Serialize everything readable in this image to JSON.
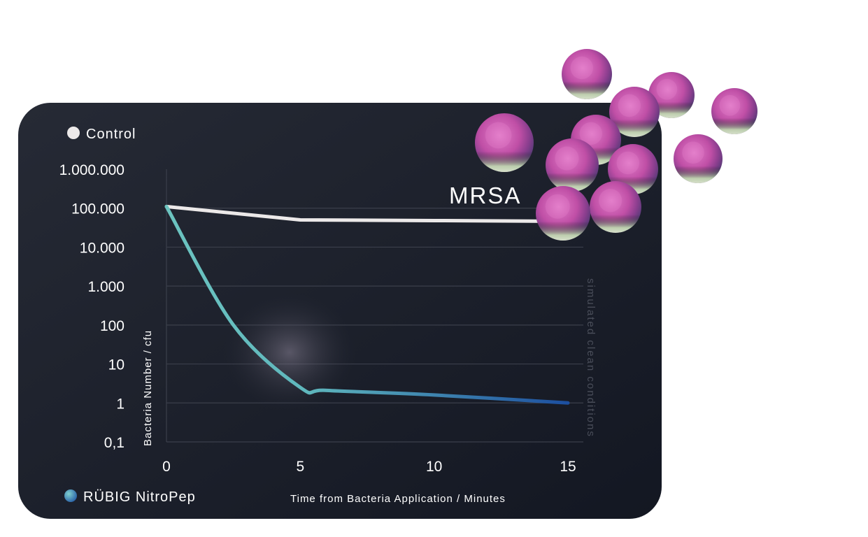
{
  "chart_data": {
    "type": "line",
    "title": "",
    "xlabel": "Time from Bacteria Application / Minutes",
    "ylabel": "Bacteria Number / cfu",
    "yscale": "log",
    "xlim": [
      0,
      15
    ],
    "ylim": [
      0.1,
      1000000
    ],
    "x_ticks": [
      "0",
      "5",
      "10",
      "15"
    ],
    "y_ticks": [
      "0,1",
      "1",
      "10",
      "100",
      "1.000",
      "10.000",
      "100.000",
      "1.000.000"
    ],
    "grid": true,
    "annotation": "MRSA",
    "side_note": "simulated clean conditions",
    "series": [
      {
        "name": "Control",
        "color": "#ece9e9",
        "x": [
          0,
          5,
          10,
          15
        ],
        "y": [
          110000,
          50000,
          48000,
          46000
        ]
      },
      {
        "name": "RÜBIG NitroPep",
        "color": "#5fb7bd",
        "color_end": "#1c4fa0",
        "x": [
          0,
          2.5,
          5,
          6,
          10,
          15
        ],
        "y": [
          110000,
          100,
          2.5,
          2.1,
          1.6,
          1
        ]
      }
    ],
    "legend": [
      "Control",
      "RÜBIG NitroPep"
    ]
  },
  "icons": {
    "bacteria": "mrsa-bacteria-cluster"
  }
}
